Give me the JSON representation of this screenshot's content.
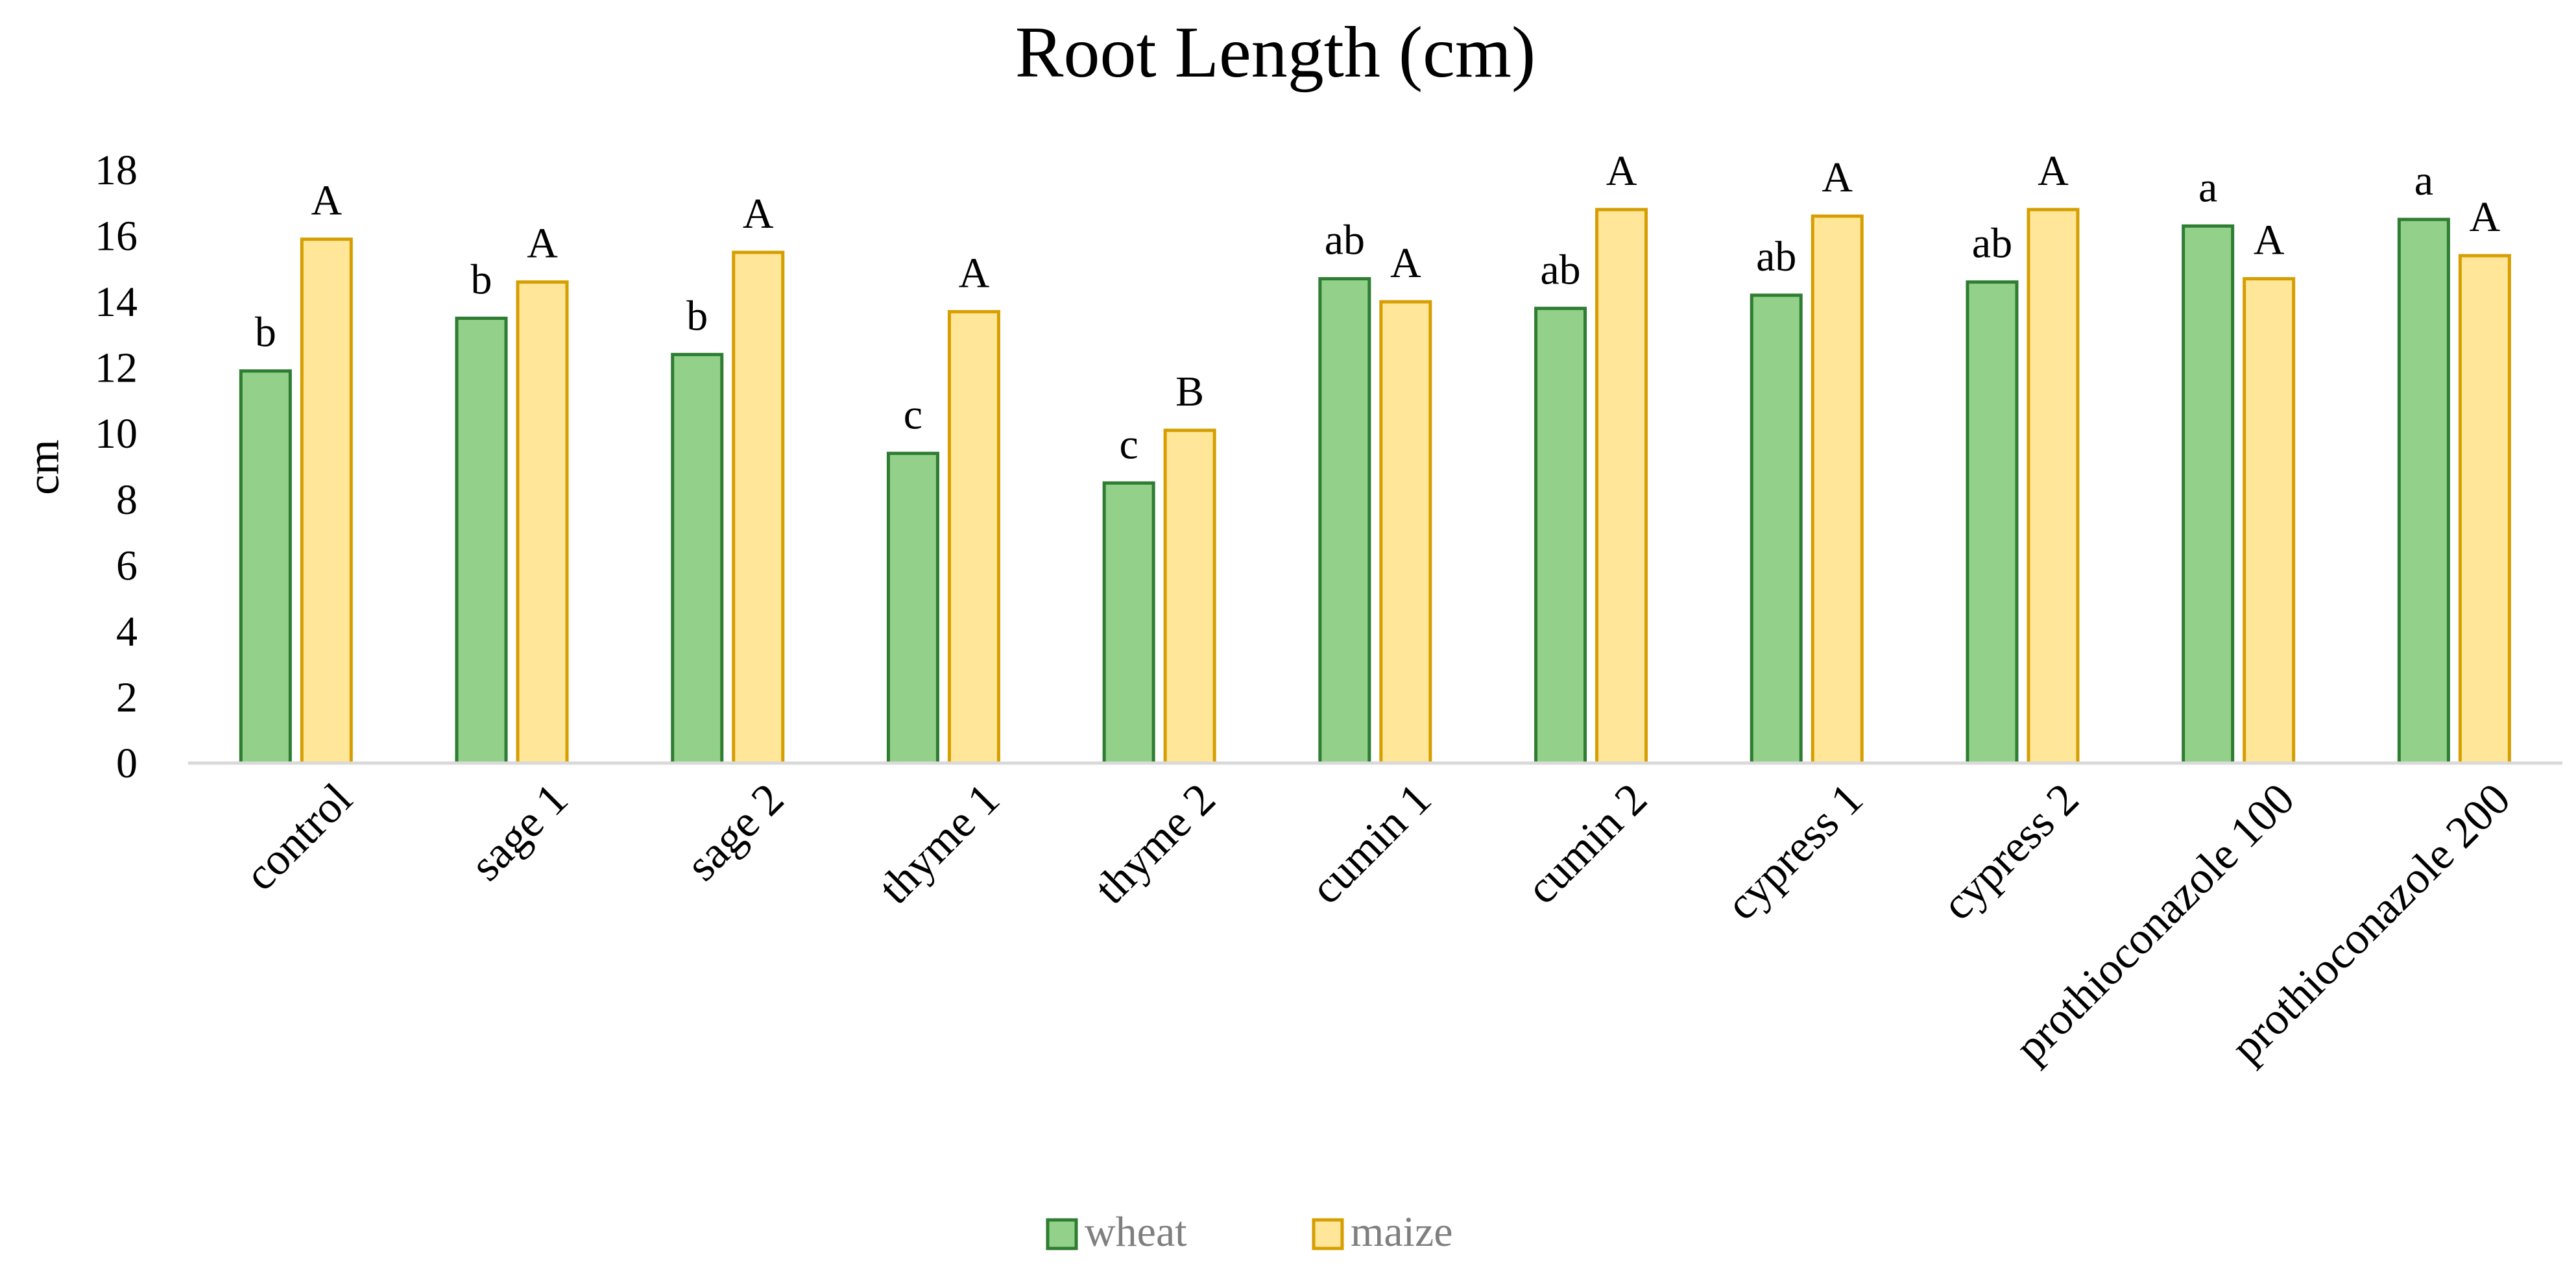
{
  "chart_data": {
    "type": "bar",
    "title": "Root Length (cm)",
    "xlabel": "",
    "ylabel": "cm",
    "ylim": [
      0,
      18
    ],
    "yticks": [
      0,
      2,
      4,
      6,
      8,
      10,
      12,
      14,
      16,
      18
    ],
    "grid": false,
    "legend_position": "bottom",
    "categories": [
      "control",
      "sage 1",
      "sage 2",
      "thyme 1",
      "thyme 2",
      "cumin 1",
      "cumin 2",
      "cypress 1",
      "cypress 2",
      "prothioconazole 100",
      "prothioconazole 200"
    ],
    "series": [
      {
        "name": "wheat",
        "fill": "#93d18b",
        "stroke": "#2e7d32",
        "values": [
          11.9,
          13.5,
          12.4,
          9.4,
          8.5,
          14.7,
          13.8,
          14.2,
          14.6,
          16.3,
          16.5
        ],
        "letters": [
          "b",
          "b",
          "b",
          "c",
          "c",
          "ab",
          "ab",
          "ab",
          "ab",
          "a",
          "a"
        ]
      },
      {
        "name": "maize",
        "fill": "#ffe699",
        "stroke": "#d69e00",
        "values": [
          15.9,
          14.6,
          15.5,
          13.7,
          10.1,
          14.0,
          16.8,
          16.6,
          16.8,
          14.7,
          15.4
        ],
        "letters": [
          "A",
          "A",
          "A",
          "A",
          "B",
          "A",
          "A",
          "A",
          "A",
          "A",
          "A"
        ]
      }
    ]
  }
}
